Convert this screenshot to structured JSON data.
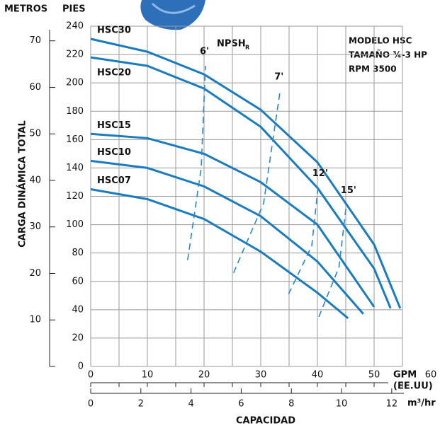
{
  "chart_data": {
    "type": "line",
    "y_label_left": "METROS",
    "y_label_right": "PIES",
    "y_title": "CARGA DINÁMICA TOTAL",
    "x_title": "CAPACIDAD",
    "x_unit": "GPM",
    "x_unit2": "(EE.UU)",
    "x2_unit": "m³/hr",
    "annotations": [
      "MODELO HSC",
      "TAMAÑO ¾-3 HP",
      "RPM 3500"
    ],
    "npsh_label": "NPSH",
    "npsh_sub": "R",
    "xlim": [
      0,
      60
    ],
    "xticks": [
      0,
      10,
      20,
      30,
      40,
      50,
      60
    ],
    "xminorticks": [
      5,
      15,
      25,
      35,
      45,
      55
    ],
    "x2lim": [
      0,
      13.6
    ],
    "x2ticks": [
      0,
      2,
      4,
      6,
      8,
      10,
      12
    ],
    "ylim": [
      0,
      240
    ],
    "yticks": [
      0,
      20,
      40,
      60,
      80,
      100,
      120,
      140,
      160,
      180,
      200,
      220,
      240
    ],
    "y2lim": [
      0,
      73.15
    ],
    "y2ticks": [
      10,
      20,
      30,
      40,
      50,
      60,
      70
    ],
    "grid": true,
    "series": [
      {
        "name": "HSC30",
        "color": "#1a7cc0",
        "x": [
          0,
          10,
          20,
          30,
          40,
          50,
          54.6
        ],
        "values": [
          231,
          222,
          206,
          181,
          144,
          86,
          41
        ]
      },
      {
        "name": "HSC20",
        "color": "#1a7cc0",
        "x": [
          0,
          10,
          20,
          30,
          40,
          50,
          52.9
        ],
        "values": [
          218,
          212,
          196,
          169,
          126,
          69,
          41
        ]
      },
      {
        "name": "HSC15",
        "color": "#1a7cc0",
        "x": [
          0,
          10,
          20,
          30,
          40,
          50
        ],
        "values": [
          164,
          161,
          150,
          130,
          100,
          42
        ]
      },
      {
        "name": "HSC10",
        "color": "#1a7cc0",
        "x": [
          0,
          10,
          20,
          30,
          40,
          48.1
        ],
        "values": [
          145,
          140,
          127,
          106,
          74,
          37
        ]
      },
      {
        "name": "HSC07",
        "color": "#1a7cc0",
        "x": [
          0,
          10,
          20,
          30,
          40,
          45.4
        ],
        "values": [
          125,
          118,
          104,
          81,
          52,
          34
        ]
      }
    ],
    "npsh": [
      {
        "name": "6'",
        "color": "#2a86d0",
        "x": [
          17.1,
          19.5,
          20.25
        ],
        "values": [
          75,
          140,
          212
        ]
      },
      {
        "name": "7'",
        "color": "#2a86d0",
        "x": [
          25.2,
          30.5,
          33.4
        ],
        "values": [
          66,
          115,
          194
        ]
      },
      {
        "name": "12'",
        "color": "#2a86d0",
        "x": [
          34.9,
          39,
          40.1
        ],
        "values": [
          51,
          85,
          126
        ]
      },
      {
        "name": "15'",
        "color": "#2a86d0",
        "x": [
          40.25,
          43.8,
          45.1
        ],
        "values": [
          35,
          70,
          114
        ]
      }
    ]
  }
}
